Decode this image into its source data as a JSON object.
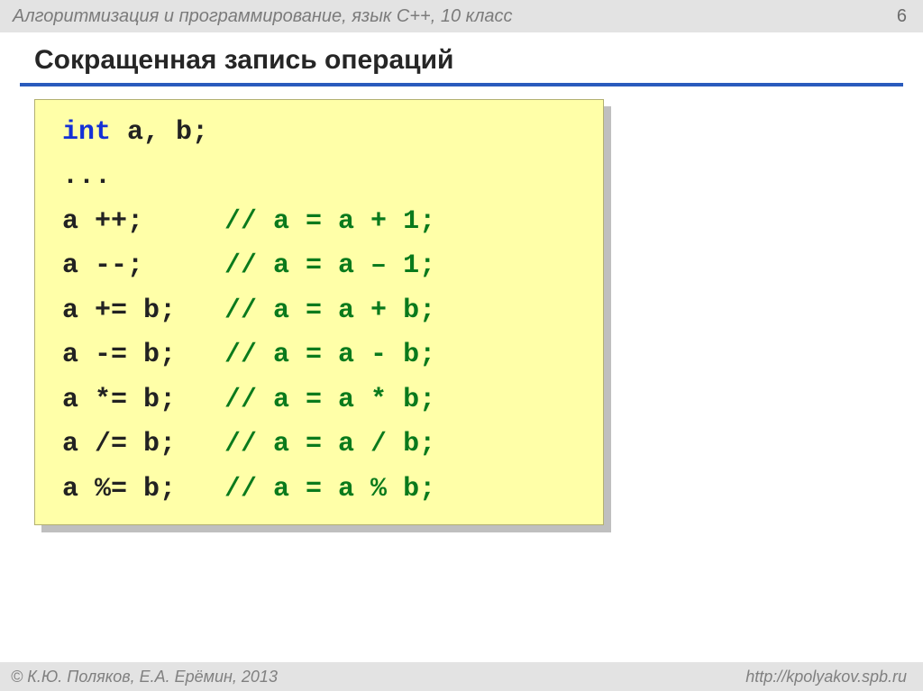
{
  "header": {
    "course": "Алгоритмизация и программирование, язык  С++, 10 класс",
    "page_number": "6"
  },
  "slide": {
    "title": "Сокращенная запись операций",
    "accent_color": "#2a5bbd"
  },
  "code": {
    "background_color": "#ffffa8",
    "border_color": "#b2b071",
    "shadow_color": "#bfbfbf",
    "font_family": "Courier New",
    "font_size_pt": 22,
    "keyword_color": "#1430d6",
    "comment_color": "#0a7a1c",
    "text_color": "#222222",
    "lines": [
      {
        "keyword": "int",
        "code": " a, b;",
        "comment": ""
      },
      {
        "keyword": "",
        "code": "...",
        "comment": ""
      },
      {
        "keyword": "",
        "code": "a ++;     ",
        "comment": "// a = a + 1;"
      },
      {
        "keyword": "",
        "code": "a --;     ",
        "comment": "// a = a – 1;"
      },
      {
        "keyword": "",
        "code": "a += b;   ",
        "comment": "// a = a + b;"
      },
      {
        "keyword": "",
        "code": "a -= b;   ",
        "comment": "// a = a - b;"
      },
      {
        "keyword": "",
        "code": "a *= b;   ",
        "comment": "// a = a * b;"
      },
      {
        "keyword": "",
        "code": "a /= b;   ",
        "comment": "// a = a / b;"
      },
      {
        "keyword": "",
        "code": "a %= b;   ",
        "comment": "// a = a % b;"
      }
    ]
  },
  "footer": {
    "copyright": "© К.Ю. Поляков, Е.А. Ерёмин, 2013",
    "url": "http://kpolyakov.spb.ru"
  }
}
